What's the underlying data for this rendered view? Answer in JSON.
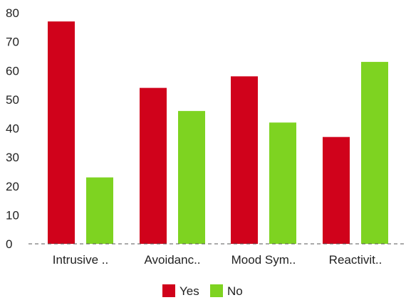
{
  "chart_data": {
    "type": "bar",
    "categories": [
      "Intrusive ..",
      "Avoidanc..",
      "Mood Sym..",
      "Reactivit.."
    ],
    "series": [
      {
        "name": "Yes",
        "values": [
          77,
          54,
          58,
          37
        ],
        "color": "#d0021b"
      },
      {
        "name": "No",
        "values": [
          23,
          46,
          42,
          63
        ],
        "color": "#7ed321"
      }
    ],
    "yticks": [
      0,
      10,
      20,
      30,
      40,
      50,
      60,
      70,
      80
    ],
    "ylim": [
      0,
      80
    ],
    "grid": false,
    "legend": "bottom-center",
    "baseline_style": "dashed"
  }
}
